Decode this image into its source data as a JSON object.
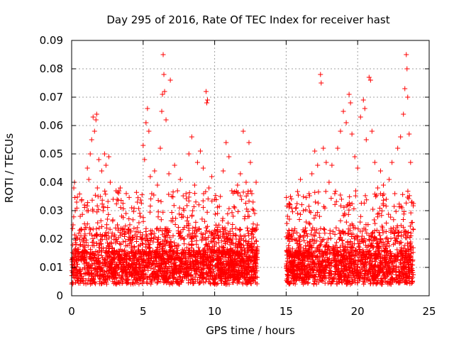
{
  "chart_data": {
    "type": "scatter",
    "title": "Day 295 of 2016, Rate Of TEC Index for receiver hast",
    "xlabel": "GPS time / hours",
    "ylabel": "ROTI / TECUs",
    "xlim": [
      0,
      25
    ],
    "ylim": [
      0,
      0.09
    ],
    "xticks": [
      0,
      5,
      10,
      15,
      20,
      25
    ],
    "xtick_labels": [
      "0",
      "5",
      "10",
      "15",
      "20",
      "25"
    ],
    "yticks": [
      0,
      0.01,
      0.02,
      0.03,
      0.04,
      0.05,
      0.06,
      0.07,
      0.08,
      0.09
    ],
    "ytick_labels": [
      "0",
      "0.01",
      "0.02",
      "0.03",
      "0.04",
      "0.05",
      "0.06",
      "0.07",
      "0.08",
      "0.09"
    ],
    "grid": true,
    "marker": "plus",
    "color": "#ff0000",
    "data_gap_hours": [
      13.0,
      15.0
    ],
    "series": [
      {
        "name": "ROTI",
        "points": [
          [
            0.05,
            0.012
          ],
          [
            0.1,
            0.025
          ],
          [
            0.15,
            0.038
          ],
          [
            0.2,
            0.04
          ],
          [
            0.25,
            0.03
          ],
          [
            0.3,
            0.018
          ],
          [
            0.35,
            0.033
          ],
          [
            0.4,
            0.008
          ],
          [
            0.5,
            0.022
          ],
          [
            0.6,
            0.028
          ],
          [
            0.7,
            0.014
          ],
          [
            0.8,
            0.019
          ],
          [
            0.9,
            0.032
          ],
          [
            1.0,
            0.024
          ],
          [
            1.1,
            0.045
          ],
          [
            1.2,
            0.041
          ],
          [
            1.3,
            0.05
          ],
          [
            1.4,
            0.055
          ],
          [
            1.5,
            0.063
          ],
          [
            1.6,
            0.058
          ],
          [
            1.7,
            0.062
          ],
          [
            1.75,
            0.064
          ],
          [
            1.8,
            0.038
          ],
          [
            1.9,
            0.048
          ],
          [
            2.0,
            0.035
          ],
          [
            2.1,
            0.044
          ],
          [
            2.2,
            0.03
          ],
          [
            2.3,
            0.05
          ],
          [
            2.4,
            0.046
          ],
          [
            2.5,
            0.027
          ],
          [
            2.6,
            0.049
          ],
          [
            2.7,
            0.04
          ],
          [
            2.8,
            0.021
          ],
          [
            2.9,
            0.034
          ],
          [
            3.0,
            0.016
          ],
          [
            3.2,
            0.025
          ],
          [
            3.4,
            0.038
          ],
          [
            3.6,
            0.019
          ],
          [
            3.8,
            0.029
          ],
          [
            4.0,
            0.022
          ],
          [
            4.2,
            0.031
          ],
          [
            4.4,
            0.017
          ],
          [
            4.6,
            0.024
          ],
          [
            4.8,
            0.028
          ],
          [
            5.0,
            0.053
          ],
          [
            5.1,
            0.048
          ],
          [
            5.2,
            0.061
          ],
          [
            5.3,
            0.066
          ],
          [
            5.4,
            0.058
          ],
          [
            5.5,
            0.042
          ],
          [
            5.6,
            0.036
          ],
          [
            5.8,
            0.044
          ],
          [
            6.0,
            0.039
          ],
          [
            6.2,
            0.052
          ],
          [
            6.3,
            0.065
          ],
          [
            6.35,
            0.071
          ],
          [
            6.4,
            0.085
          ],
          [
            6.45,
            0.078
          ],
          [
            6.5,
            0.072
          ],
          [
            6.6,
            0.062
          ],
          [
            6.8,
            0.043
          ],
          [
            6.9,
            0.076
          ],
          [
            7.0,
            0.035
          ],
          [
            7.2,
            0.046
          ],
          [
            7.4,
            0.037
          ],
          [
            7.6,
            0.041
          ],
          [
            7.8,
            0.028
          ],
          [
            8.0,
            0.036
          ],
          [
            8.2,
            0.05
          ],
          [
            8.4,
            0.056
          ],
          [
            8.6,
            0.039
          ],
          [
            8.8,
            0.047
          ],
          [
            9.0,
            0.051
          ],
          [
            9.2,
            0.045
          ],
          [
            9.4,
            0.072
          ],
          [
            9.45,
            0.068
          ],
          [
            9.5,
            0.069
          ],
          [
            9.6,
            0.038
          ],
          [
            9.8,
            0.042
          ],
          [
            10.0,
            0.034
          ],
          [
            10.2,
            0.029
          ],
          [
            10.4,
            0.035
          ],
          [
            10.6,
            0.044
          ],
          [
            10.8,
            0.054
          ],
          [
            11.0,
            0.049
          ],
          [
            11.2,
            0.037
          ],
          [
            11.4,
            0.031
          ],
          [
            11.6,
            0.039
          ],
          [
            11.8,
            0.043
          ],
          [
            12.0,
            0.058
          ],
          [
            12.2,
            0.04
          ],
          [
            12.4,
            0.054
          ],
          [
            12.5,
            0.047
          ],
          [
            12.6,
            0.036
          ],
          [
            12.8,
            0.029
          ],
          [
            12.9,
            0.04
          ],
          [
            15.1,
            0.028
          ],
          [
            15.3,
            0.035
          ],
          [
            15.5,
            0.022
          ],
          [
            15.7,
            0.031
          ],
          [
            16.0,
            0.041
          ],
          [
            16.2,
            0.03
          ],
          [
            16.4,
            0.026
          ],
          [
            16.6,
            0.036
          ],
          [
            16.8,
            0.043
          ],
          [
            17.0,
            0.051
          ],
          [
            17.2,
            0.046
          ],
          [
            17.4,
            0.078
          ],
          [
            17.45,
            0.075
          ],
          [
            17.6,
            0.052
          ],
          [
            17.8,
            0.047
          ],
          [
            18.0,
            0.04
          ],
          [
            18.2,
            0.046
          ],
          [
            18.4,
            0.036
          ],
          [
            18.6,
            0.052
          ],
          [
            18.8,
            0.058
          ],
          [
            19.0,
            0.065
          ],
          [
            19.2,
            0.061
          ],
          [
            19.4,
            0.071
          ],
          [
            19.5,
            0.068
          ],
          [
            19.6,
            0.057
          ],
          [
            19.8,
            0.049
          ],
          [
            20.0,
            0.045
          ],
          [
            20.2,
            0.063
          ],
          [
            20.4,
            0.069
          ],
          [
            20.5,
            0.066
          ],
          [
            20.6,
            0.055
          ],
          [
            20.8,
            0.077
          ],
          [
            20.9,
            0.076
          ],
          [
            21.0,
            0.058
          ],
          [
            21.2,
            0.047
          ],
          [
            21.4,
            0.038
          ],
          [
            21.6,
            0.044
          ],
          [
            21.8,
            0.039
          ],
          [
            22.0,
            0.034
          ],
          [
            22.2,
            0.041
          ],
          [
            22.4,
            0.047
          ],
          [
            22.6,
            0.036
          ],
          [
            22.8,
            0.052
          ],
          [
            23.0,
            0.056
          ],
          [
            23.2,
            0.064
          ],
          [
            23.3,
            0.073
          ],
          [
            23.4,
            0.085
          ],
          [
            23.45,
            0.08
          ],
          [
            23.5,
            0.07
          ],
          [
            23.6,
            0.057
          ],
          [
            23.7,
            0.047
          ],
          [
            23.8,
            0.033
          ]
        ]
      }
    ],
    "dense_band": {
      "description_range_y": [
        0.003,
        0.03
      ],
      "segments_hours": [
        [
          0.0,
          13.0
        ],
        [
          15.0,
          23.9
        ]
      ]
    }
  }
}
